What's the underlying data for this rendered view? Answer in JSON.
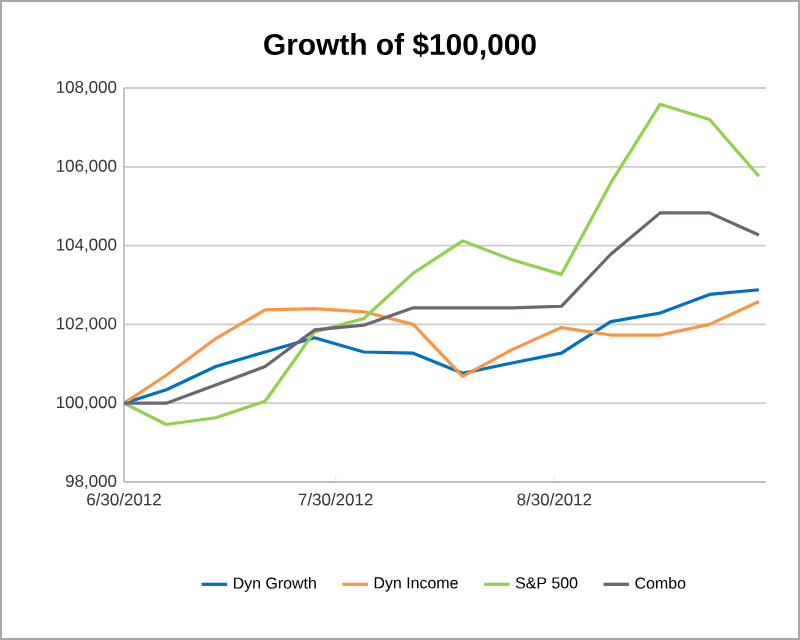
{
  "chart_data": {
    "type": "line",
    "title": "Growth of $100,000",
    "x": [
      "2012-06-30",
      "2012-07-06",
      "2012-07-13",
      "2012-07-20",
      "2012-07-27",
      "2012-08-03",
      "2012-08-10",
      "2012-08-17",
      "2012-08-24",
      "2012-08-31",
      "2012-09-07",
      "2012-09-14",
      "2012-09-21",
      "2012-09-28"
    ],
    "series": [
      {
        "name": "Dyn Growth",
        "color": "#0070c0",
        "values": [
          100000,
          100340,
          100930,
          101300,
          101660,
          101300,
          101270,
          100760,
          101020,
          101270,
          102070,
          102290,
          102760,
          102880
        ]
      },
      {
        "name": "Dyn Income",
        "color": "#f79646",
        "values": [
          100000,
          100710,
          101640,
          102370,
          102400,
          102320,
          102000,
          100680,
          101360,
          101920,
          101730,
          101730,
          102000,
          102580
        ]
      },
      {
        "name": "S&P 500",
        "color": "#92d050",
        "values": [
          100000,
          99460,
          99630,
          100050,
          101810,
          102150,
          103300,
          104120,
          103640,
          103270,
          105590,
          107590,
          107200,
          105760
        ]
      },
      {
        "name": "Combo",
        "color": "#6b6576",
        "values": [
          100000,
          100000,
          100460,
          100930,
          101860,
          101980,
          102420,
          102420,
          102420,
          102460,
          103780,
          104830,
          104830,
          104270
        ]
      }
    ],
    "xlim": [
      "2012-06-30",
      "2012-09-29"
    ],
    "xticks": [
      {
        "value": "2012-06-30",
        "label": "6/30/2012"
      },
      {
        "value": "2012-07-30",
        "label": "7/30/2012"
      },
      {
        "value": "2012-08-30",
        "label": "8/30/2012"
      }
    ],
    "ylim": [
      98000,
      108000
    ],
    "yticks": [
      {
        "value": 98000,
        "label": "98,000"
      },
      {
        "value": 100000,
        "label": "100,000"
      },
      {
        "value": 102000,
        "label": "102,000"
      },
      {
        "value": 104000,
        "label": "104,000"
      },
      {
        "value": 106000,
        "label": "106,000"
      },
      {
        "value": 108000,
        "label": "108,000"
      }
    ],
    "grid": "y",
    "legend": "bottom",
    "marker": "none",
    "line_style": "solid"
  }
}
